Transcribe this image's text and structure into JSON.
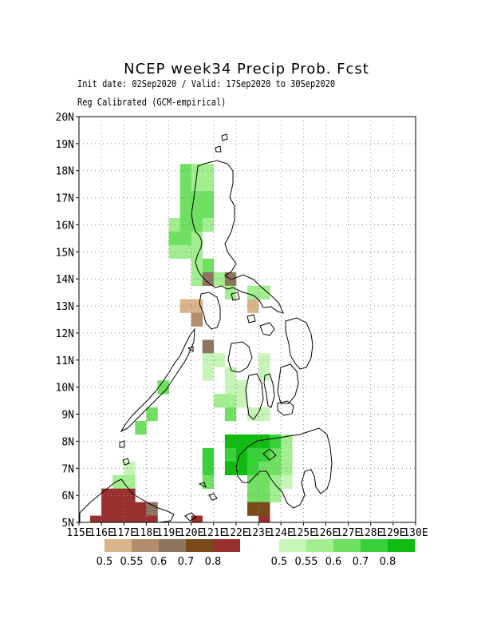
{
  "header": {
    "title": "NCEP week34 Precip Prob. Fcst",
    "subtitle1": "Init date: 02Sep2020 / Valid: 17Sep2020 to 30Sep2020",
    "subtitle2": "Reg Calibrated (GCM-empirical)"
  },
  "axes": {
    "x_ticks": [
      "115E",
      "116E",
      "117E",
      "118E",
      "119E",
      "120E",
      "121E",
      "122E",
      "123E",
      "124E",
      "125E",
      "126E",
      "127E",
      "128E",
      "129E",
      "130E"
    ],
    "y_ticks": [
      "5N",
      "6N",
      "7N",
      "8N",
      "9N",
      "10N",
      "11N",
      "12N",
      "13N",
      "14N",
      "15N",
      "16N",
      "17N",
      "18N",
      "19N",
      "20N"
    ],
    "lon_range": [
      115,
      130
    ],
    "lat_range": [
      5,
      20
    ],
    "grid": "dotted"
  },
  "legend": {
    "dry": {
      "colors": [
        "#d9b48a",
        "#b38d6d",
        "#8d7560",
        "#7a4a1a",
        "#992f2f"
      ],
      "labels": [
        "0.5",
        "0.55",
        "0.6",
        "0.7",
        "0.8"
      ]
    },
    "wet": {
      "colors": [
        "#c7f5b8",
        "#a2ee90",
        "#6fe062",
        "#39d139",
        "#10bb10"
      ],
      "labels": [
        "0.5",
        "0.55",
        "0.6",
        "0.7",
        "0.8"
      ]
    }
  },
  "map_data": {
    "cell_size_deg": 0.5,
    "cells": [
      [
        "g3",
        119.75,
        18.0
      ],
      [
        "g2",
        120.25,
        18.0
      ],
      [
        "g2",
        120.75,
        18.0
      ],
      [
        "g3",
        119.75,
        17.5
      ],
      [
        "g2",
        120.25,
        17.5
      ],
      [
        "g2",
        120.75,
        17.5
      ],
      [
        "g3",
        119.75,
        17.0
      ],
      [
        "g3",
        120.25,
        17.0
      ],
      [
        "g3",
        120.75,
        17.0
      ],
      [
        "g3",
        119.75,
        16.5
      ],
      [
        "g3",
        120.25,
        16.5
      ],
      [
        "g3",
        120.75,
        16.5
      ],
      [
        "g2",
        119.25,
        16.0
      ],
      [
        "g3",
        119.75,
        16.0
      ],
      [
        "g3",
        120.25,
        16.0
      ],
      [
        "g2",
        120.75,
        16.0
      ],
      [
        "g3",
        119.25,
        15.5
      ],
      [
        "g3",
        119.75,
        15.5
      ],
      [
        "g2",
        120.25,
        15.5
      ],
      [
        "g2",
        119.25,
        15.0
      ],
      [
        "g2",
        119.75,
        15.0
      ],
      [
        "g2",
        120.25,
        15.0
      ],
      [
        "g2",
        120.25,
        14.5
      ],
      [
        "g3",
        120.75,
        14.5
      ],
      [
        "g2",
        120.25,
        14.0
      ],
      [
        "d3",
        120.75,
        14.0
      ],
      [
        "g2",
        121.25,
        14.0
      ],
      [
        "d3",
        121.75,
        14.0
      ],
      [
        "g2",
        121.75,
        13.5
      ],
      [
        "g2",
        122.75,
        13.5
      ],
      [
        "g2",
        123.25,
        13.5
      ],
      [
        "d1",
        119.75,
        13.0
      ],
      [
        "d1",
        120.25,
        13.0
      ],
      [
        "d1",
        122.75,
        13.0
      ],
      [
        "d2",
        120.25,
        12.5
      ],
      [
        "d3",
        120.75,
        11.5
      ],
      [
        "g1",
        120.75,
        11.0
      ],
      [
        "g1",
        121.25,
        11.0
      ],
      [
        "g1",
        123.25,
        11.0
      ],
      [
        "g1",
        120.75,
        10.5
      ],
      [
        "g1",
        121.75,
        10.5
      ],
      [
        "g1",
        123.25,
        10.5
      ],
      [
        "g1",
        121.75,
        10.0
      ],
      [
        "g1",
        122.25,
        10.0
      ],
      [
        "g2",
        121.25,
        9.5
      ],
      [
        "g2",
        121.75,
        9.5
      ],
      [
        "g1",
        122.25,
        9.5
      ],
      [
        "g3",
        121.75,
        9.0
      ],
      [
        "g1",
        122.75,
        9.0
      ],
      [
        "g1",
        123.25,
        9.0
      ],
      [
        "g3",
        118.75,
        10.0
      ],
      [
        "g3",
        118.25,
        9.0
      ],
      [
        "g3",
        117.75,
        8.5
      ],
      [
        "g5",
        121.75,
        8.0
      ],
      [
        "g5",
        122.25,
        8.0
      ],
      [
        "g5",
        122.75,
        8.0
      ],
      [
        "g5",
        123.25,
        8.0
      ],
      [
        "g4",
        123.75,
        8.0
      ],
      [
        "g2",
        124.25,
        8.0
      ],
      [
        "g4",
        120.75,
        7.5
      ],
      [
        "g4",
        121.75,
        7.5
      ],
      [
        "g5",
        122.25,
        7.5
      ],
      [
        "g4",
        122.75,
        7.5
      ],
      [
        "g4",
        123.25,
        7.5
      ],
      [
        "g3",
        123.75,
        7.5
      ],
      [
        "g2",
        124.25,
        7.5
      ],
      [
        "g4",
        120.75,
        7.0
      ],
      [
        "g5",
        121.75,
        7.0
      ],
      [
        "g5",
        122.25,
        7.0
      ],
      [
        "g4",
        122.75,
        7.0
      ],
      [
        "g3",
        123.25,
        7.0
      ],
      [
        "g3",
        123.75,
        7.0
      ],
      [
        "g2",
        124.25,
        7.0
      ],
      [
        "g3",
        120.75,
        6.5
      ],
      [
        "g3",
        122.75,
        6.5
      ],
      [
        "g3",
        123.25,
        6.5
      ],
      [
        "g2",
        123.75,
        6.5
      ],
      [
        "g1",
        124.25,
        6.5
      ],
      [
        "g3",
        122.75,
        6.0
      ],
      [
        "g3",
        123.25,
        6.0
      ],
      [
        "g2",
        123.75,
        6.0
      ],
      [
        "d4",
        122.75,
        5.5
      ],
      [
        "d4",
        123.25,
        5.5
      ],
      [
        "d5",
        123.25,
        5.0
      ],
      [
        "g1",
        117.25,
        7.0
      ],
      [
        "g2",
        117.25,
        6.5
      ],
      [
        "g2",
        116.75,
        6.5
      ],
      [
        "d5",
        116.25,
        6.0
      ],
      [
        "d5",
        116.75,
        6.0
      ],
      [
        "d5",
        117.25,
        6.0
      ],
      [
        "d5",
        116.25,
        5.5
      ],
      [
        "d5",
        116.75,
        5.5
      ],
      [
        "d5",
        117.25,
        5.5
      ],
      [
        "d5",
        117.75,
        5.5
      ],
      [
        "d3",
        118.25,
        5.5
      ],
      [
        "d5",
        115.75,
        5.0
      ],
      [
        "d5",
        116.25,
        5.0
      ],
      [
        "d5",
        116.75,
        5.0
      ],
      [
        "d5",
        117.25,
        5.0
      ],
      [
        "d5",
        117.75,
        5.0
      ],
      [
        "d5",
        118.25,
        5.0
      ],
      [
        "d5",
        120.25,
        5.0
      ]
    ]
  }
}
